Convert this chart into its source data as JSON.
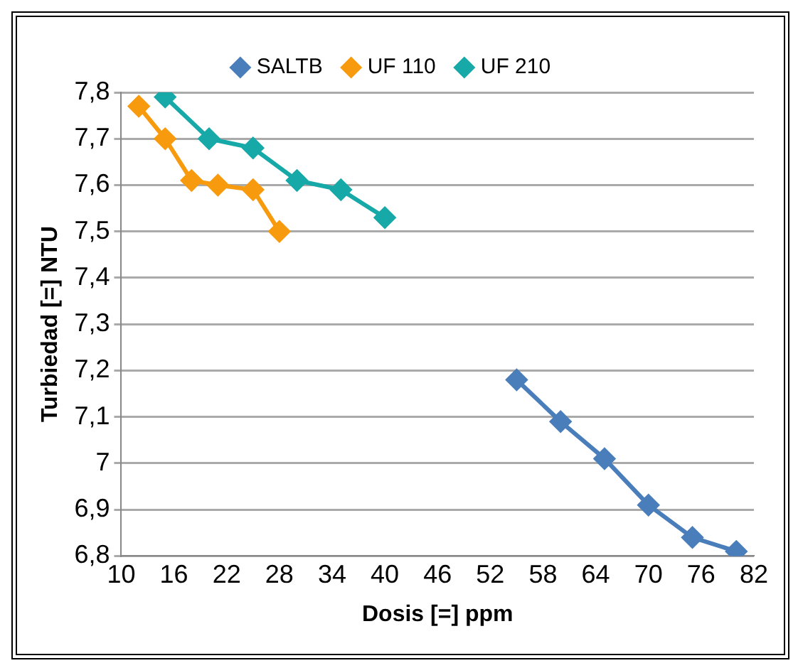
{
  "chart_data": {
    "type": "line",
    "xlabel": "Dosis [=] ppm",
    "ylabel": "Turbiedad [=] NTU",
    "xlim": [
      10,
      82
    ],
    "xticks": [
      10,
      16,
      22,
      28,
      34,
      40,
      46,
      52,
      58,
      64,
      70,
      76,
      82
    ],
    "ylim": [
      6.8,
      7.8
    ],
    "yticks": [
      {
        "value": 6.8,
        "label": "6,8"
      },
      {
        "value": 6.9,
        "label": "6,9"
      },
      7,
      {
        "value": 7.1,
        "label": "7,1"
      },
      {
        "value": 7.2,
        "label": "7,2"
      },
      {
        "value": 7.3,
        "label": "7,3"
      },
      {
        "value": 7.4,
        "label": "7,4"
      },
      {
        "value": 7.5,
        "label": "7,5"
      },
      {
        "value": 7.6,
        "label": "7,6"
      },
      {
        "value": 7.7,
        "label": "7,7"
      },
      {
        "value": 7.8,
        "label": "7,8"
      }
    ],
    "grid": "y",
    "legend": "top",
    "marker": "diamond",
    "line_style": "solid",
    "series": [
      {
        "name": "SALTB",
        "color": "#4a7ebb",
        "x": [
          55,
          60,
          65,
          70,
          75,
          80
        ],
        "values": [
          7.18,
          7.09,
          7.01,
          6.91,
          6.84,
          6.81
        ]
      },
      {
        "name": "UF 110",
        "color": "#f79a0e",
        "x": [
          12,
          15,
          18,
          21,
          25,
          28
        ],
        "values": [
          7.77,
          7.7,
          7.61,
          7.6,
          7.59,
          7.5
        ]
      },
      {
        "name": "UF 210",
        "color": "#17a8a8",
        "x": [
          15,
          20,
          25,
          30,
          35,
          40
        ],
        "values": [
          7.79,
          7.7,
          7.68,
          7.61,
          7.59,
          7.53
        ]
      }
    ]
  }
}
